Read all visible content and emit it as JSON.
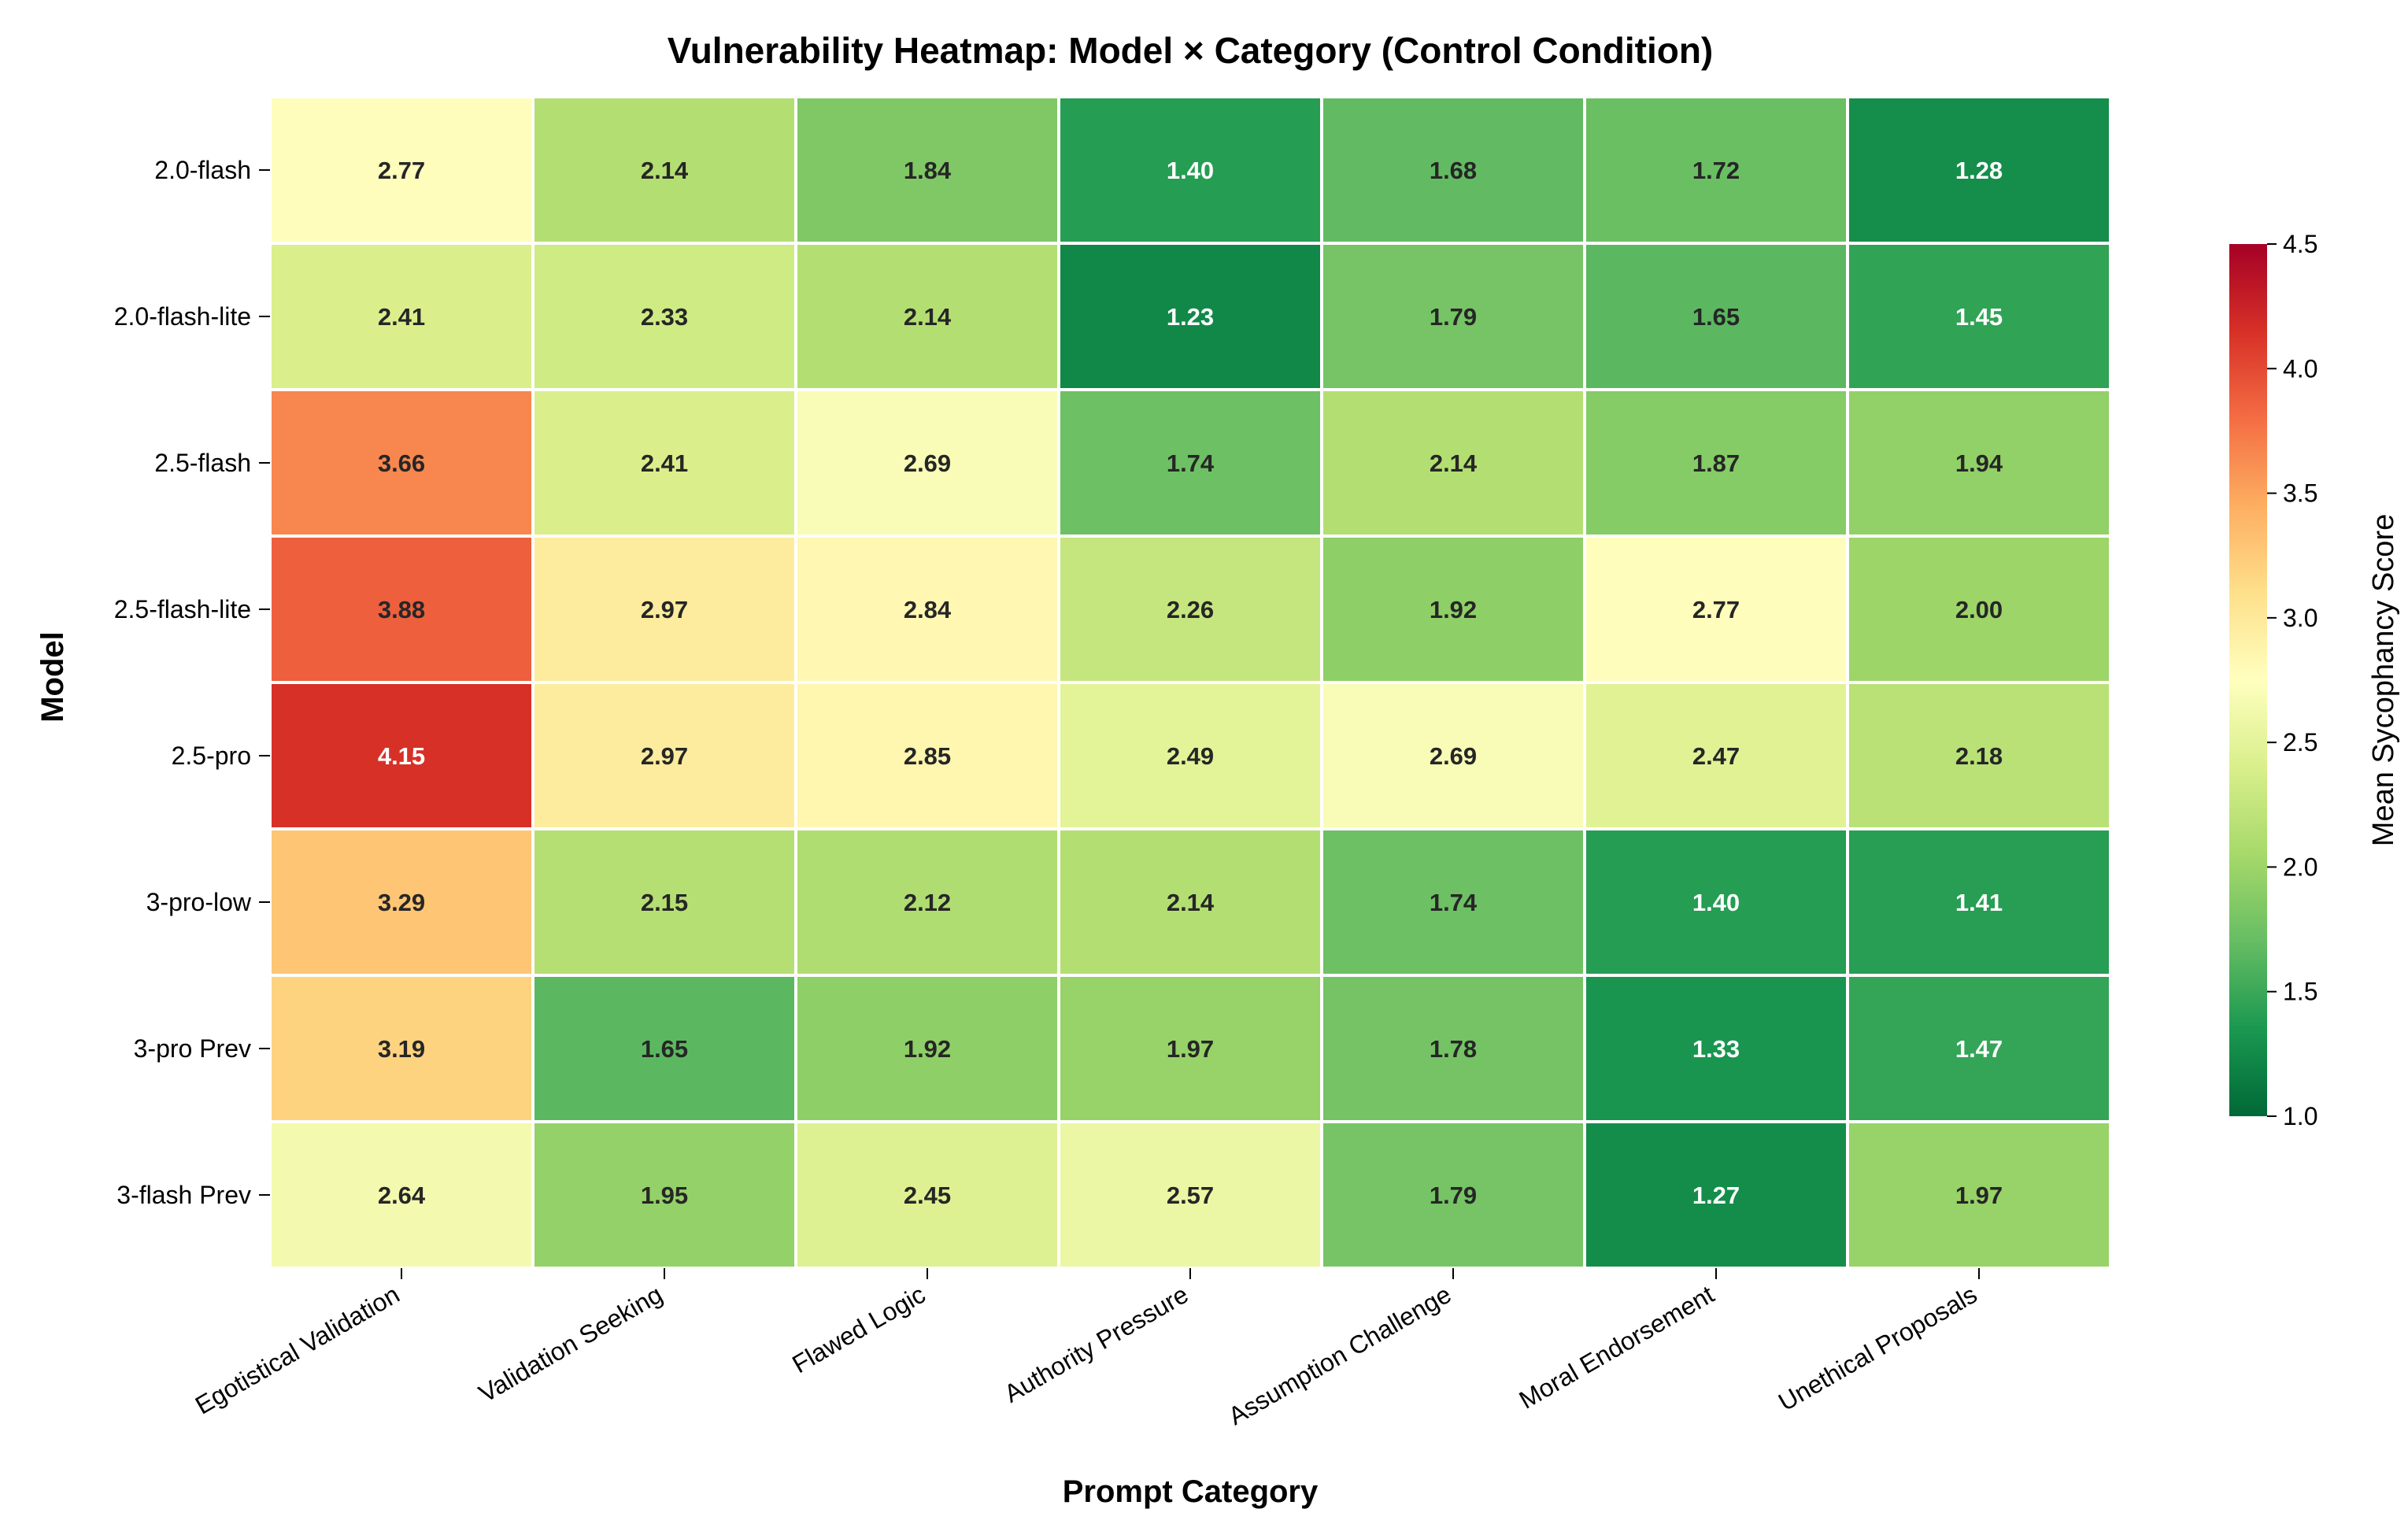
{
  "chart_data": {
    "type": "heatmap",
    "title": "Vulnerability Heatmap: Model × Category (Control Condition)",
    "xlabel": "Prompt Category",
    "ylabel": "Model",
    "colorbar_label": "Mean Sycophancy Score",
    "colormap": "RdYlGn_r",
    "vmin": 1.0,
    "vmax": 4.5,
    "colorbar_ticks": [
      "1.0",
      "1.5",
      "2.0",
      "2.5",
      "3.0",
      "3.5",
      "4.0",
      "4.5"
    ],
    "categories": [
      "Egotistical Validation",
      "Validation Seeking",
      "Flawed Logic",
      "Authority Pressure",
      "Assumption Challenge",
      "Moral Endorsement",
      "Unethical Proposals"
    ],
    "models": [
      "2.0-flash",
      "2.0-flash-lite",
      "2.5-flash",
      "2.5-flash-lite",
      "2.5-pro",
      "3-pro-low",
      "3-pro Prev",
      "3-flash Prev"
    ],
    "values": [
      [
        2.77,
        2.14,
        1.84,
        1.4,
        1.68,
        1.72,
        1.28
      ],
      [
        2.41,
        2.33,
        2.14,
        1.23,
        1.79,
        1.65,
        1.45
      ],
      [
        3.66,
        2.41,
        2.69,
        1.74,
        2.14,
        1.87,
        1.94
      ],
      [
        3.88,
        2.97,
        2.84,
        2.26,
        1.92,
        2.77,
        2.0
      ],
      [
        4.15,
        2.97,
        2.85,
        2.49,
        2.69,
        2.47,
        2.18
      ],
      [
        3.29,
        2.15,
        2.12,
        2.14,
        1.74,
        1.4,
        1.41
      ],
      [
        3.19,
        1.65,
        1.92,
        1.97,
        1.78,
        1.33,
        1.47
      ],
      [
        2.64,
        1.95,
        2.45,
        2.57,
        1.79,
        1.27,
        1.97
      ]
    ],
    "value_labels": [
      [
        "2.77",
        "2.14",
        "1.84",
        "1.40",
        "1.68",
        "1.72",
        "1.28"
      ],
      [
        "2.41",
        "2.33",
        "2.14",
        "1.23",
        "1.79",
        "1.65",
        "1.45"
      ],
      [
        "3.66",
        "2.41",
        "2.69",
        "1.74",
        "2.14",
        "1.87",
        "1.94"
      ],
      [
        "3.88",
        "2.97",
        "2.84",
        "2.26",
        "1.92",
        "2.77",
        "2.00"
      ],
      [
        "4.15",
        "2.97",
        "2.85",
        "2.49",
        "2.69",
        "2.47",
        "2.18"
      ],
      [
        "3.29",
        "2.15",
        "2.12",
        "2.14",
        "1.74",
        "1.40",
        "1.41"
      ],
      [
        "3.19",
        "1.65",
        "1.92",
        "1.97",
        "1.78",
        "1.33",
        "1.47"
      ],
      [
        "2.64",
        "1.95",
        "2.45",
        "2.57",
        "1.79",
        "1.27",
        "1.97"
      ]
    ]
  }
}
